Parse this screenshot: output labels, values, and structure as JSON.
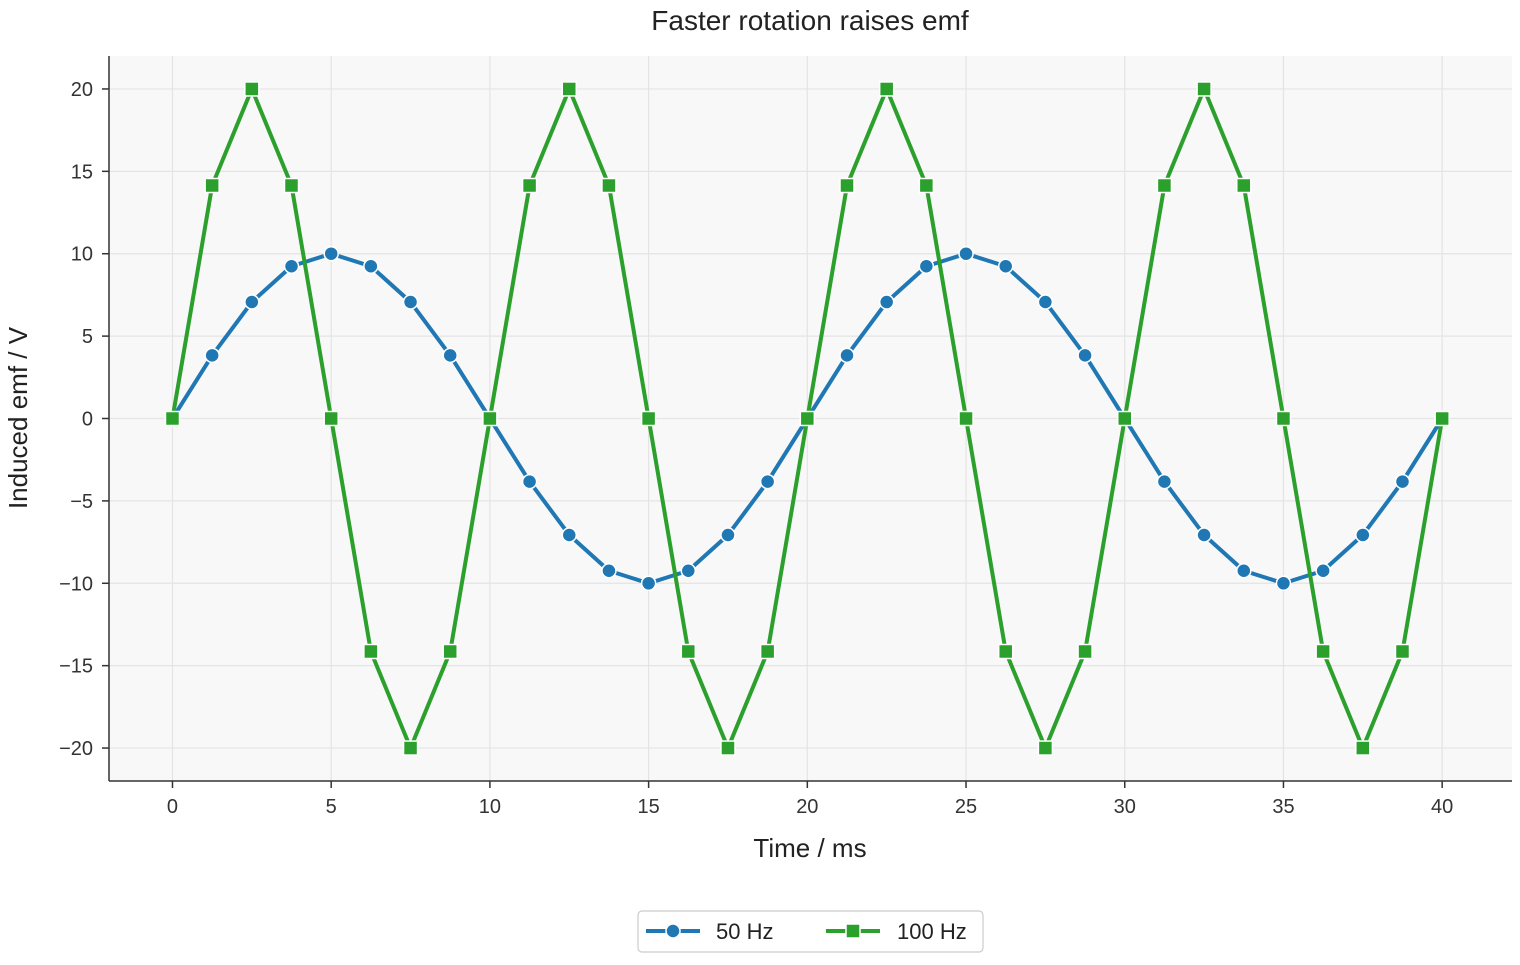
{
  "chart_data": {
    "type": "line",
    "title": "Faster rotation raises emf",
    "xlabel": "Time / ms",
    "ylabel": "Induced emf / V",
    "xlim": [
      -2,
      42.2
    ],
    "ylim": [
      -22,
      22
    ],
    "xticks": [
      0,
      5,
      10,
      15,
      20,
      25,
      30,
      35,
      40
    ],
    "yticks": [
      20,
      15,
      10,
      5,
      0,
      -5,
      -10,
      -15,
      -20
    ],
    "ytick_labels": [
      "20",
      "15",
      "10",
      "5",
      "0",
      "−5",
      "−10",
      "−15",
      "−20"
    ],
    "grid": true,
    "legend_position": "bottom-center",
    "x": [
      0,
      1.25,
      2.5,
      3.75,
      5,
      6.25,
      7.5,
      8.75,
      10,
      11.25,
      12.5,
      13.75,
      15,
      16.25,
      17.5,
      18.75,
      20,
      21.25,
      22.5,
      23.75,
      25,
      26.25,
      27.5,
      28.75,
      30,
      31.25,
      32.5,
      33.75,
      35,
      36.25,
      37.5,
      38.75,
      40
    ],
    "series": [
      {
        "name": "50 Hz",
        "color": "#1f77b4",
        "marker": "circle",
        "values": [
          0,
          3.83,
          7.07,
          9.24,
          10,
          9.24,
          7.07,
          3.83,
          0,
          -3.83,
          -7.07,
          -9.24,
          -10,
          -9.24,
          -7.07,
          -3.83,
          0,
          3.83,
          7.07,
          9.24,
          10,
          9.24,
          7.07,
          3.83,
          0,
          -3.83,
          -7.07,
          -9.24,
          -10,
          -9.24,
          -7.07,
          -3.83,
          0
        ]
      },
      {
        "name": "100 Hz",
        "color": "#2ca02c",
        "marker": "square",
        "values": [
          0,
          14.14,
          20,
          14.14,
          0,
          -14.14,
          -20,
          -14.14,
          0,
          14.14,
          20,
          14.14,
          0,
          -14.14,
          -20,
          -14.14,
          0,
          14.14,
          20,
          14.14,
          0,
          -14.14,
          -20,
          -14.14,
          0,
          14.14,
          20,
          14.14,
          0,
          -14.14,
          -20,
          -14.14,
          0
        ]
      }
    ]
  }
}
